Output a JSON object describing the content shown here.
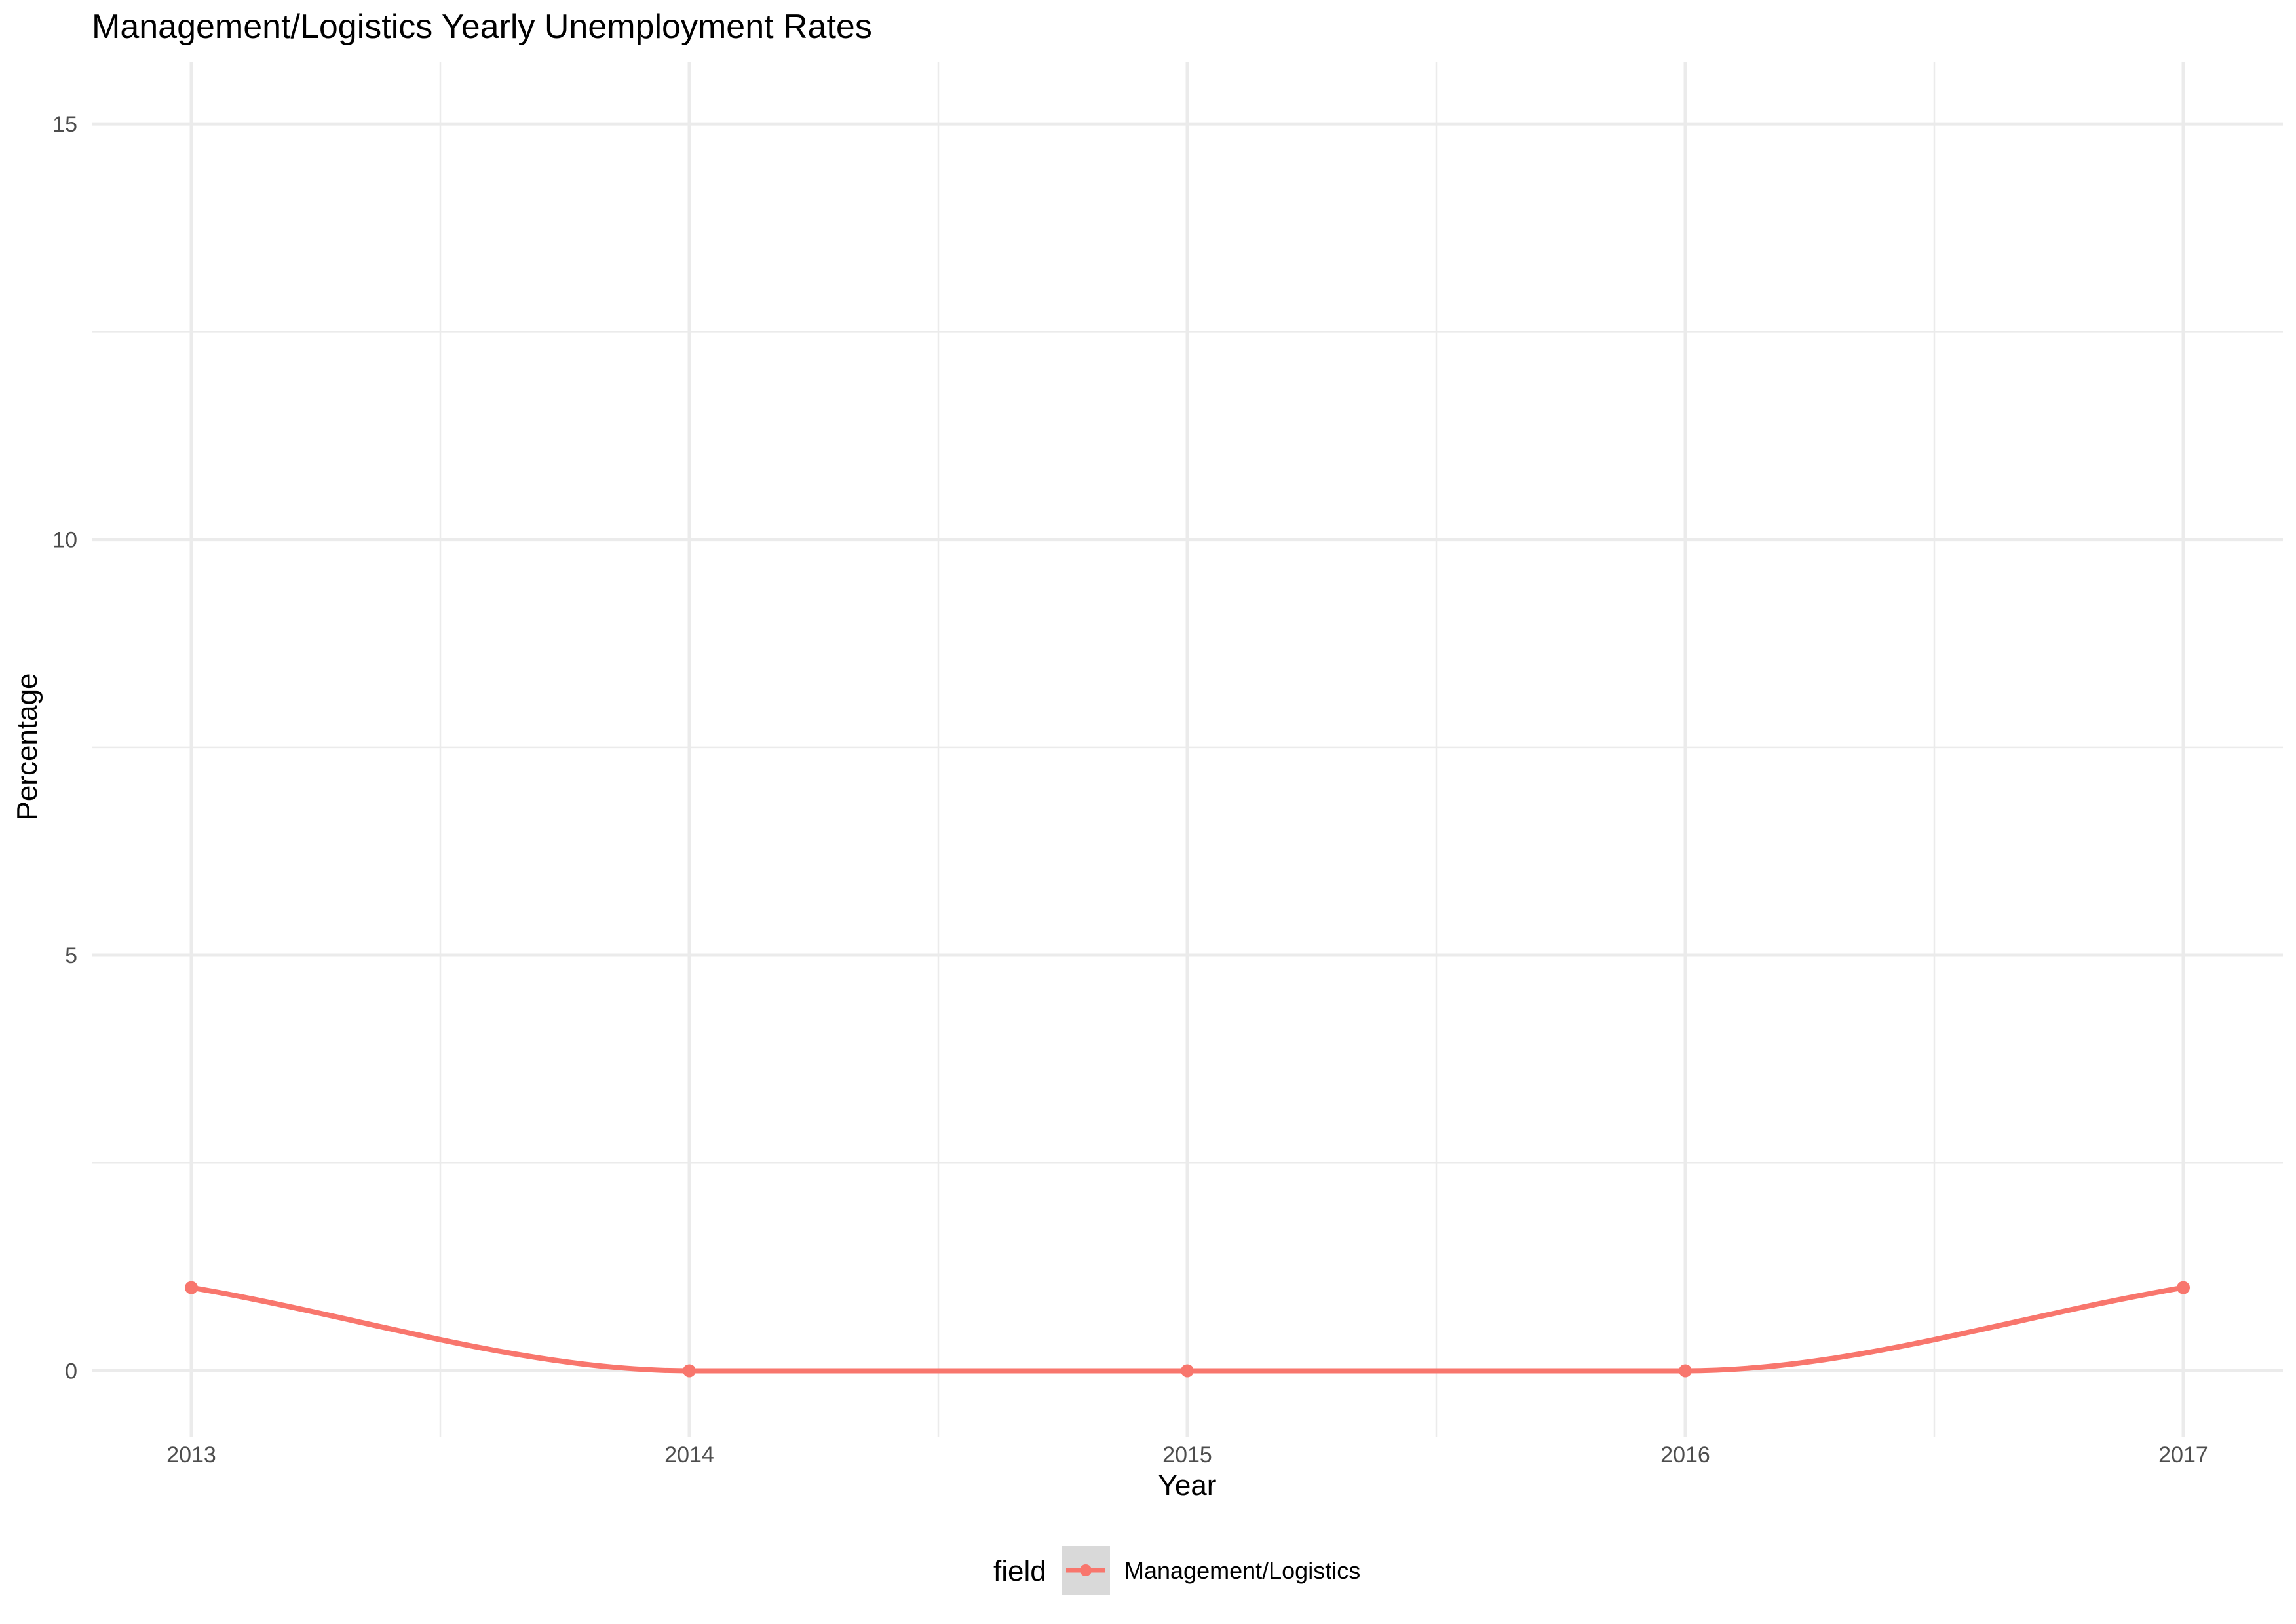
{
  "chart_data": {
    "type": "line",
    "title": "Management/Logistics Yearly Unemployment Rates",
    "xlabel": "Year",
    "ylabel": "Percentage",
    "x": [
      2013,
      2014,
      2015,
      2016,
      2017
    ],
    "x_tick_labels": [
      "2013",
      "2014",
      "2015",
      "2016",
      "2017"
    ],
    "y_ticks": [
      0,
      5,
      10,
      15
    ],
    "y_tick_labels": [
      "0",
      "5",
      "10",
      "15"
    ],
    "xlim": [
      2012.8,
      2017.2
    ],
    "ylim": [
      -0.8,
      15.75
    ],
    "grid": true,
    "legend_position": "bottom",
    "legend_title": "field",
    "series": [
      {
        "name": "Management/Logistics",
        "color": "#F8766D",
        "values": [
          1,
          0,
          0,
          0,
          1
        ]
      }
    ]
  }
}
